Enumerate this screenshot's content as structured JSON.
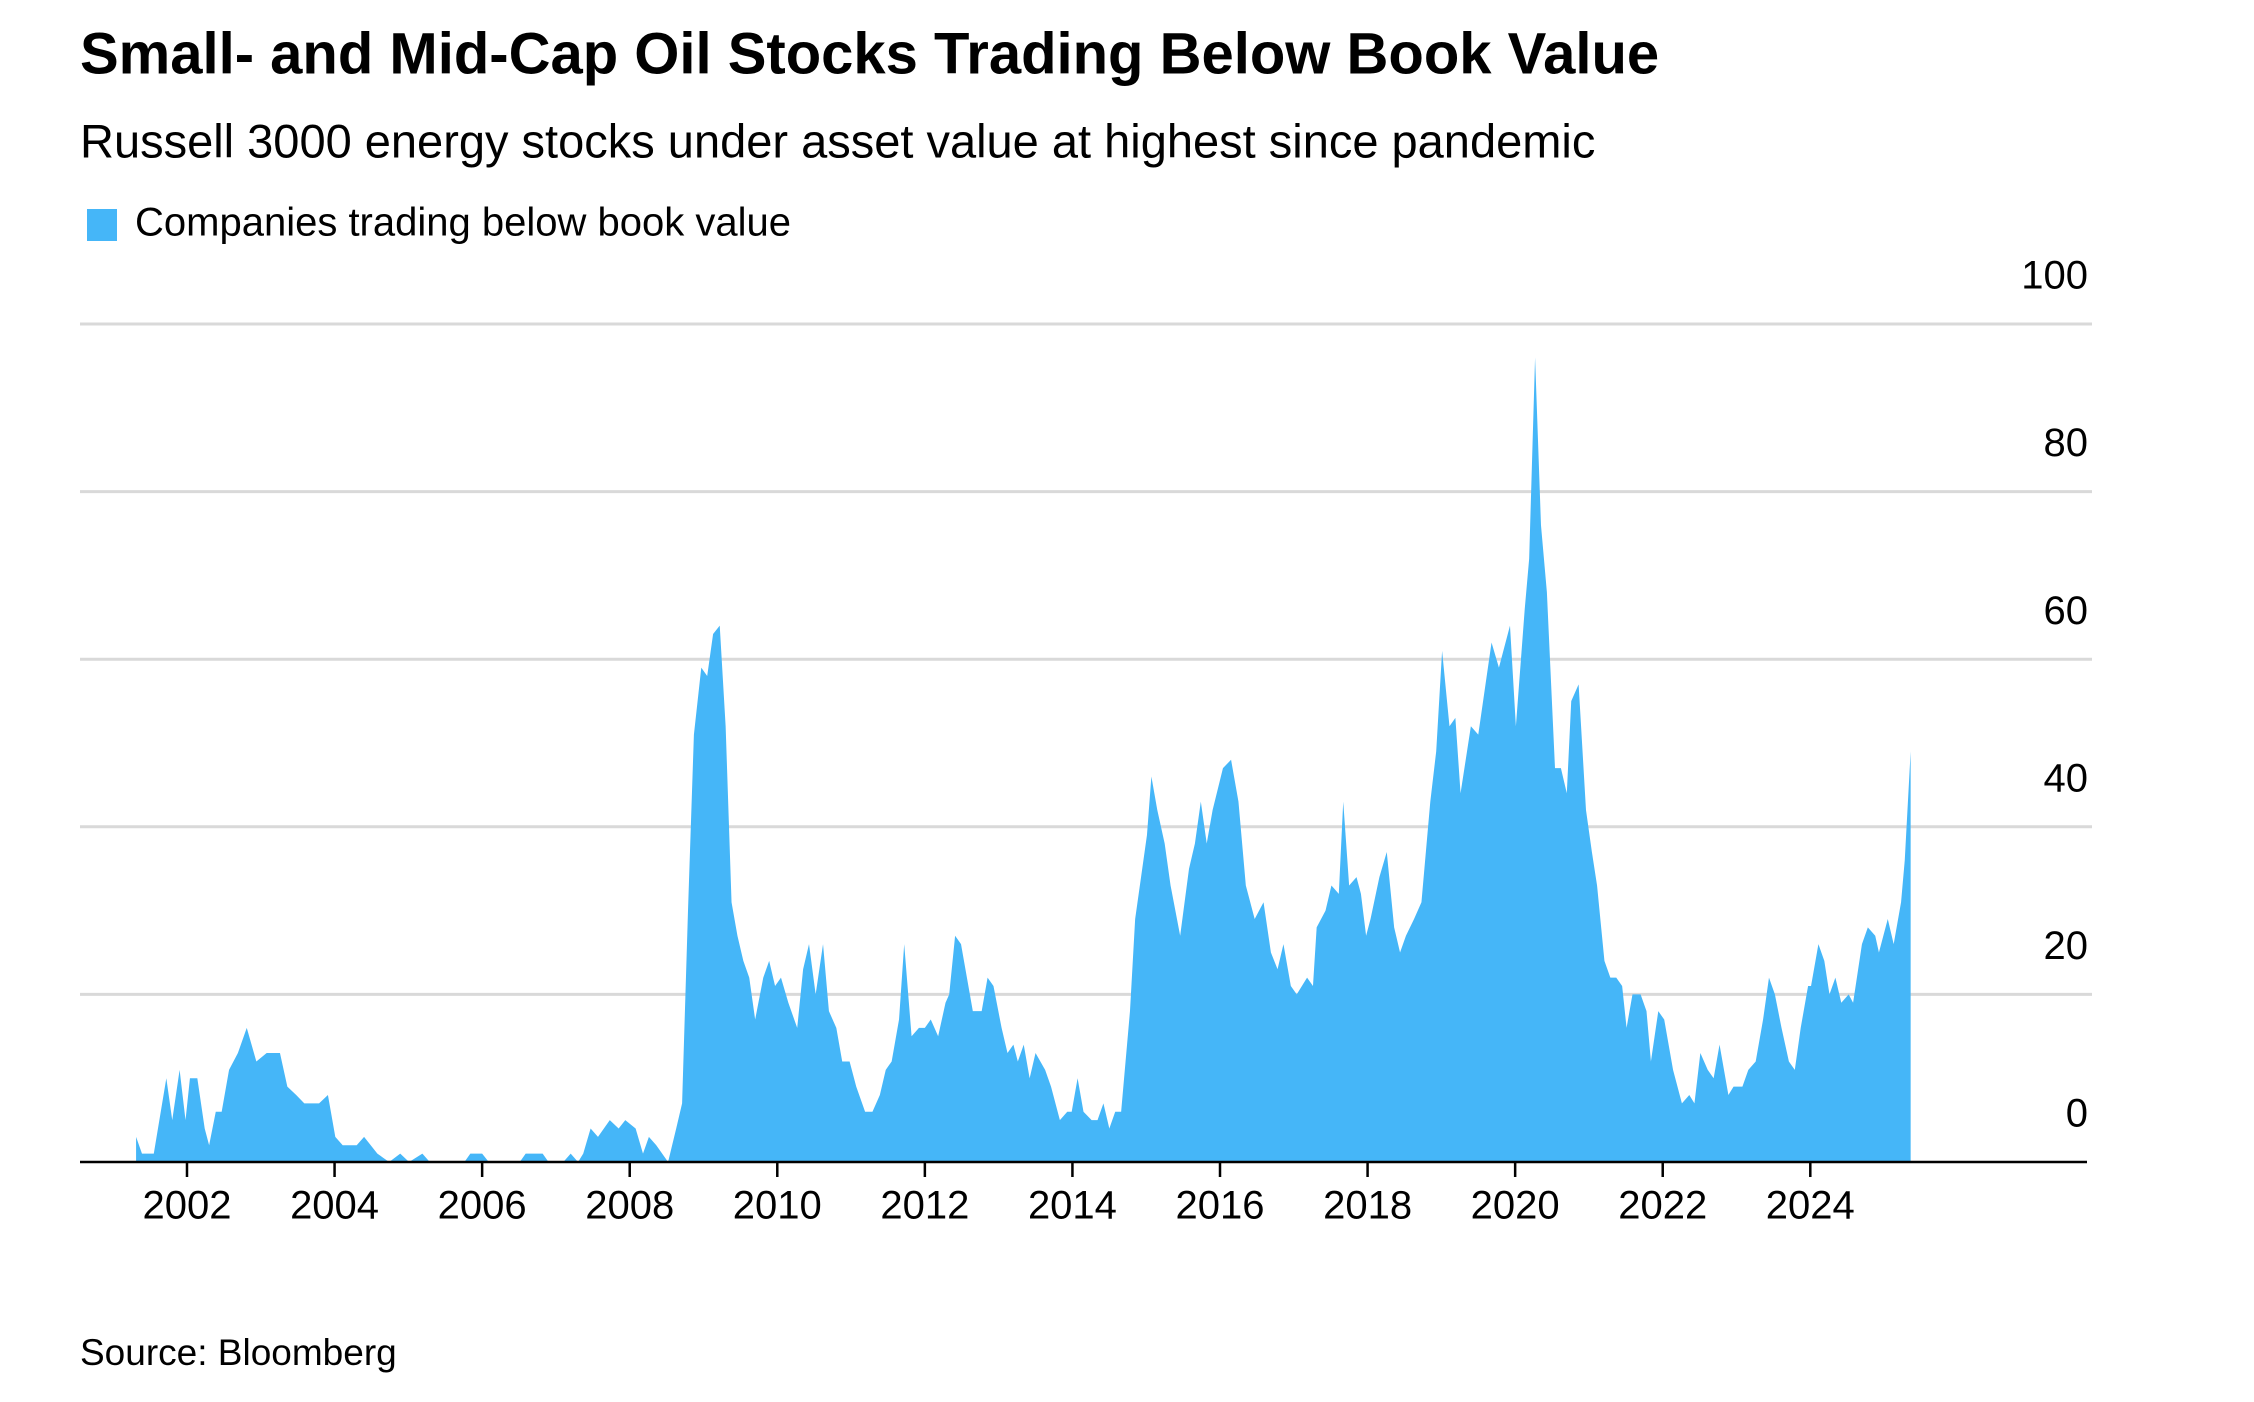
{
  "chart_data": {
    "type": "area",
    "title": "Small- and Mid-Cap Oil Stocks Trading Below Book Value",
    "subtitle": "Russell 3000 energy stocks under asset value at highest since pandemic",
    "source": "Source: Bloomberg",
    "x": [
      2001.31,
      2001.39,
      2001.55,
      2001.72,
      2001.8,
      2001.9,
      2001.98,
      2002.04,
      2002.14,
      2002.24,
      2002.3,
      2002.39,
      2002.47,
      2002.57,
      2002.69,
      2002.81,
      2002.94,
      2003.08,
      2003.26,
      2003.36,
      2003.48,
      2003.59,
      2003.79,
      2003.91,
      2004.01,
      2004.11,
      2004.3,
      2004.4,
      2004.58,
      2004.74,
      2004.89,
      2005.01,
      2005.19,
      2005.29,
      2005.76,
      2005.84,
      2006.0,
      2006.09,
      2006.51,
      2006.59,
      2006.82,
      2006.9,
      2007.1,
      2007.2,
      2007.3,
      2007.37,
      2007.47,
      2007.57,
      2007.73,
      2007.85,
      2007.94,
      2008.08,
      2008.18,
      2008.26,
      2008.36,
      2008.52,
      2008.63,
      2008.71,
      2008.79,
      2008.87,
      2008.97,
      2009.05,
      2009.13,
      2009.22,
      2009.3,
      2009.38,
      2009.46,
      2009.54,
      2009.62,
      2009.7,
      2009.81,
      2009.89,
      2009.97,
      2010.05,
      2010.15,
      2010.27,
      2010.35,
      2010.43,
      2010.52,
      2010.62,
      2010.7,
      2010.8,
      2010.88,
      2010.98,
      2011.07,
      2011.19,
      2011.29,
      2011.39,
      2011.47,
      2011.55,
      2011.65,
      2011.72,
      2011.82,
      2011.92,
      2012.0,
      2012.08,
      2012.18,
      2012.28,
      2012.33,
      2012.41,
      2012.49,
      2012.57,
      2012.65,
      2012.77,
      2012.85,
      2012.93,
      2013.04,
      2013.12,
      2013.2,
      2013.26,
      2013.34,
      2013.42,
      2013.5,
      2013.63,
      2013.71,
      2013.83,
      2013.93,
      2013.99,
      2014.07,
      2014.15,
      2014.26,
      2014.34,
      2014.42,
      2014.5,
      2014.58,
      2014.66,
      2014.78,
      2014.85,
      2014.93,
      2015.01,
      2015.07,
      2015.15,
      2015.25,
      2015.33,
      2015.46,
      2015.58,
      2015.66,
      2015.74,
      2015.82,
      2015.9,
      2016.04,
      2016.15,
      2016.25,
      2016.35,
      2016.47,
      2016.59,
      2016.69,
      2016.78,
      2016.86,
      2016.96,
      2017.04,
      2017.18,
      2017.26,
      2017.31,
      2017.43,
      2017.51,
      2017.61,
      2017.67,
      2017.75,
      2017.85,
      2017.91,
      2017.98,
      2018.04,
      2018.16,
      2018.26,
      2018.36,
      2018.44,
      2018.52,
      2018.63,
      2018.73,
      2018.85,
      2018.93,
      2019.01,
      2019.11,
      2019.19,
      2019.26,
      2019.4,
      2019.5,
      2019.68,
      2019.78,
      2019.93,
      2020.01,
      2020.13,
      2020.19,
      2020.27,
      2020.35,
      2020.43,
      2020.54,
      2020.62,
      2020.7,
      2020.76,
      2020.86,
      2020.96,
      2021.04,
      2021.11,
      2021.21,
      2021.29,
      2021.37,
      2021.45,
      2021.51,
      2021.59,
      2021.7,
      2021.78,
      2021.84,
      2021.94,
      2022.02,
      2022.14,
      2022.26,
      2022.36,
      2022.43,
      2022.51,
      2022.61,
      2022.69,
      2022.77,
      2022.89,
      2022.96,
      2023.08,
      2023.16,
      2023.26,
      2023.36,
      2023.44,
      2023.52,
      2023.61,
      2023.71,
      2023.79,
      2023.87,
      2023.97,
      2024.01,
      2024.11,
      2024.19,
      2024.26,
      2024.34,
      2024.42,
      2024.52,
      2024.58,
      2024.7,
      2024.78,
      2024.88,
      2024.93,
      2025.05,
      2025.13,
      2025.23,
      2025.28,
      2025.36
    ],
    "series": [
      {
        "name": "Companies trading below book value",
        "color": "#45b6f8",
        "values": [
          3,
          1,
          1,
          10,
          5,
          11,
          5,
          10,
          10,
          4,
          2,
          6,
          6,
          11,
          13,
          16,
          12,
          13,
          13,
          9,
          8,
          7,
          7,
          8,
          3,
          2,
          2,
          3,
          1,
          0,
          1,
          0,
          1,
          0,
          0,
          1,
          1,
          0,
          0,
          1,
          1,
          0,
          0,
          1,
          0,
          1,
          4,
          3,
          5,
          4,
          5,
          4,
          1,
          3,
          2,
          0,
          4,
          7,
          30,
          51,
          59,
          58,
          63,
          64,
          52,
          31,
          27,
          24,
          22,
          17,
          22,
          24,
          21,
          22,
          19,
          16,
          23,
          26,
          20,
          26,
          18,
          16,
          12,
          12,
          9,
          6,
          6,
          8,
          11,
          12,
          17,
          26,
          15,
          16,
          16,
          17,
          15,
          19,
          20,
          27,
          26,
          22,
          18,
          18,
          22,
          21,
          16,
          13,
          14,
          12,
          14,
          10,
          13,
          11,
          9,
          5,
          6,
          6,
          10,
          6,
          5,
          5,
          7,
          4,
          6,
          6,
          18,
          29,
          34,
          39,
          46,
          42,
          38,
          33,
          27,
          35,
          38,
          43,
          38,
          42,
          47,
          48,
          43,
          33,
          29,
          31,
          25,
          23,
          26,
          21,
          20,
          22,
          21,
          28,
          30,
          33,
          32,
          43,
          33,
          34,
          32,
          27,
          29,
          34,
          37,
          28,
          25,
          27,
          29,
          31,
          43,
          49,
          61,
          52,
          53,
          44,
          52,
          51,
          62,
          59,
          64,
          52,
          66,
          72,
          96,
          76,
          68,
          47,
          47,
          44,
          55,
          57,
          42,
          37,
          33,
          24,
          22,
          22,
          21,
          16,
          20,
          20,
          18,
          12,
          18,
          17,
          11,
          7,
          8,
          7,
          13,
          11,
          10,
          14,
          8,
          9,
          9,
          11,
          12,
          17,
          22,
          20,
          16,
          12,
          11,
          16,
          21,
          21,
          26,
          24,
          20,
          22,
          19,
          20,
          19,
          26,
          28,
          27,
          25,
          29,
          26,
          31,
          36,
          49
        ]
      }
    ],
    "xlim": [
      2000.55,
      2027.75
    ],
    "xticks": [
      2002,
      2004,
      2006,
      2008,
      2010,
      2012,
      2014,
      2016,
      2018,
      2020,
      2022,
      2024
    ],
    "ylim": [
      0,
      100
    ],
    "yticks": [
      0,
      20,
      40,
      60,
      80,
      100
    ],
    "grid": true
  }
}
